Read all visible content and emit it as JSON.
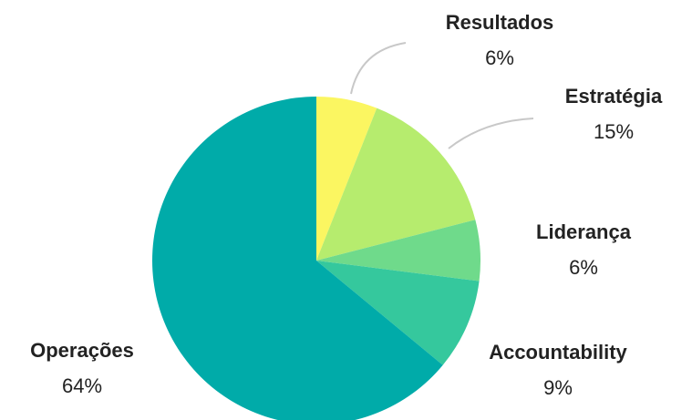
{
  "chart_data": {
    "type": "pie",
    "categories": [
      "Resultados",
      "Estratégia",
      "Liderança",
      "Accountability",
      "Operações"
    ],
    "values": [
      6,
      15,
      6,
      9,
      64
    ],
    "value_labels": [
      "6%",
      "15%",
      "6%",
      "9%",
      "64%"
    ],
    "colors": [
      "#fbf661",
      "#b6ec6e",
      "#6fda8b",
      "#35c89d",
      "#00aba9"
    ]
  }
}
